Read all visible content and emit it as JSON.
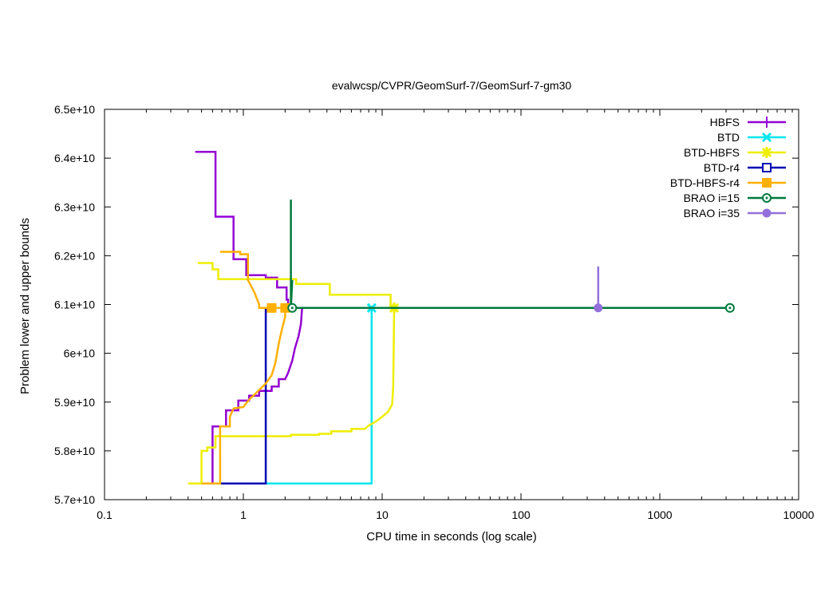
{
  "chart_data": {
    "type": "line",
    "title": "evalwcsp/CVPR/GeomSurf-7/GeomSurf-7-gm30",
    "xlabel": "CPU time in seconds (log scale)",
    "ylabel": "Problem lower and upper bounds",
    "x_scale": "log",
    "xlim": [
      0.1,
      10000
    ],
    "ylim": [
      57000000000,
      65000000000
    ],
    "x_ticks": [
      {
        "value": 0.1,
        "label": "0.1"
      },
      {
        "value": 1,
        "label": "1"
      },
      {
        "value": 10,
        "label": "10"
      },
      {
        "value": 100,
        "label": "100"
      },
      {
        "value": 1000,
        "label": "1000"
      },
      {
        "value": 10000,
        "label": "10000"
      }
    ],
    "y_ticks": [
      {
        "value": 57000000000,
        "label": "5.7e+10"
      },
      {
        "value": 58000000000,
        "label": "5.8e+10"
      },
      {
        "value": 59000000000,
        "label": "5.9e+10"
      },
      {
        "value": 60000000000,
        "label": "6e+10"
      },
      {
        "value": 61000000000,
        "label": "6.1e+10"
      },
      {
        "value": 62000000000,
        "label": "6.2e+10"
      },
      {
        "value": 63000000000,
        "label": "6.3e+10"
      },
      {
        "value": 64000000000,
        "label": "6.4e+10"
      },
      {
        "value": 65000000000,
        "label": "6.5e+10"
      }
    ],
    "grid": false,
    "legend_position": "top-right",
    "series": [
      {
        "name": "HBFS",
        "color": "#9400d3",
        "marker": "plus",
        "upper": [
          [
            0.45,
            64130000000
          ],
          [
            0.63,
            64130000000
          ],
          [
            0.63,
            62800000000
          ],
          [
            0.85,
            62800000000
          ],
          [
            0.85,
            61930000000
          ],
          [
            1.05,
            61930000000
          ],
          [
            1.05,
            61600000000
          ],
          [
            1.45,
            61600000000
          ],
          [
            1.45,
            61550000000
          ],
          [
            1.75,
            61550000000
          ],
          [
            1.75,
            61350000000
          ],
          [
            2.05,
            61350000000
          ],
          [
            2.05,
            61100000000
          ],
          [
            2.1,
            61100000000
          ],
          [
            2.1,
            60930000000
          ]
        ],
        "lower": [
          [
            0.6,
            57330000000
          ],
          [
            0.6,
            58500000000
          ],
          [
            0.75,
            58500000000
          ],
          [
            0.75,
            58830000000
          ],
          [
            0.92,
            58830000000
          ],
          [
            0.92,
            59030000000
          ],
          [
            1.1,
            59030000000
          ],
          [
            1.1,
            59130000000
          ],
          [
            1.3,
            59130000000
          ],
          [
            1.3,
            59230000000
          ],
          [
            1.6,
            59230000000
          ],
          [
            1.6,
            59320000000
          ],
          [
            1.8,
            59320000000
          ],
          [
            1.8,
            59470000000
          ],
          [
            2.0,
            59470000000
          ],
          [
            2.1,
            59600000000
          ],
          [
            2.25,
            59850000000
          ],
          [
            2.35,
            60100000000
          ],
          [
            2.5,
            60350000000
          ],
          [
            2.6,
            60600000000
          ],
          [
            2.65,
            60930000000
          ]
        ],
        "upper_marker_x": [],
        "lower_marker_x": []
      },
      {
        "name": "BTD",
        "color": "#00e5ee",
        "marker": "cross",
        "upper": [
          [
            8.4,
            60930000000
          ],
          [
            8.4,
            60930000000
          ]
        ],
        "lower": [
          [
            1.45,
            57330000000
          ],
          [
            8.4,
            57330000000
          ],
          [
            8.4,
            60930000000
          ]
        ],
        "upper_marker_x": [
          8.4
        ],
        "lower_marker_x": []
      },
      {
        "name": "BTD-HBFS",
        "color": "#eeee00",
        "marker": "star",
        "upper": [
          [
            0.47,
            61850000000
          ],
          [
            0.6,
            61850000000
          ],
          [
            0.6,
            61720000000
          ],
          [
            0.66,
            61720000000
          ],
          [
            0.66,
            61520000000
          ],
          [
            2.4,
            61520000000
          ],
          [
            2.4,
            61420000000
          ],
          [
            4.2,
            61420000000
          ],
          [
            4.2,
            61200000000
          ],
          [
            11.5,
            61200000000
          ],
          [
            11.5,
            60930000000
          ],
          [
            12.2,
            60930000000
          ]
        ],
        "lower": [
          [
            0.4,
            57330000000
          ],
          [
            0.5,
            57330000000
          ],
          [
            0.5,
            58000000000
          ],
          [
            0.55,
            58000000000
          ],
          [
            0.55,
            58070000000
          ],
          [
            0.63,
            58070000000
          ],
          [
            0.63,
            58300000000
          ],
          [
            2.2,
            58300000000
          ],
          [
            2.2,
            58330000000
          ],
          [
            3.5,
            58330000000
          ],
          [
            3.5,
            58350000000
          ],
          [
            4.3,
            58350000000
          ],
          [
            4.3,
            58400000000
          ],
          [
            6.0,
            58400000000
          ],
          [
            6.0,
            58450000000
          ],
          [
            7.5,
            58450000000
          ],
          [
            8.0,
            58520000000
          ],
          [
            9.0,
            58600000000
          ],
          [
            10.0,
            58700000000
          ],
          [
            11.0,
            58800000000
          ],
          [
            11.8,
            58950000000
          ],
          [
            12.0,
            59300000000
          ],
          [
            12.1,
            60000000000
          ],
          [
            12.2,
            60930000000
          ]
        ],
        "upper_marker_x": [
          12.2
        ],
        "lower_marker_x": []
      },
      {
        "name": "BTD-r4",
        "color": "#0000b4",
        "marker": "open-square",
        "upper": [
          [
            1.38,
            60930000000
          ],
          [
            1.45,
            60930000000
          ]
        ],
        "lower": [
          [
            0.6,
            57330000000
          ],
          [
            1.45,
            57330000000
          ],
          [
            1.45,
            60930000000
          ]
        ],
        "upper_marker_x": [],
        "lower_marker_x": []
      },
      {
        "name": "BTD-HBFS-r4",
        "color": "#ffb000",
        "marker": "filled-square",
        "upper": [
          [
            0.68,
            62080000000
          ],
          [
            0.95,
            62080000000
          ],
          [
            0.95,
            62030000000
          ],
          [
            1.08,
            62030000000
          ],
          [
            1.08,
            61500000000
          ],
          [
            1.2,
            61250000000
          ],
          [
            1.3,
            61000000000
          ],
          [
            1.3,
            60930000000
          ],
          [
            2.0,
            60930000000
          ]
        ],
        "lower": [
          [
            0.5,
            57330000000
          ],
          [
            0.68,
            57330000000
          ],
          [
            0.68,
            58500000000
          ],
          [
            0.8,
            58500000000
          ],
          [
            0.8,
            58700000000
          ],
          [
            0.85,
            58870000000
          ],
          [
            1.0,
            58900000000
          ],
          [
            1.1,
            59050000000
          ],
          [
            1.2,
            59150000000
          ],
          [
            1.3,
            59250000000
          ],
          [
            1.45,
            59380000000
          ],
          [
            1.6,
            59550000000
          ],
          [
            1.7,
            59800000000
          ],
          [
            1.8,
            60200000000
          ],
          [
            1.9,
            60500000000
          ],
          [
            2.0,
            60750000000
          ],
          [
            2.0,
            60930000000
          ]
        ],
        "upper_marker_x": [
          1.6,
          2.0
        ],
        "lower_marker_x": []
      },
      {
        "name": "BRAO i=15",
        "color": "#007a3d",
        "marker": "open-circle",
        "upper": [
          [
            2.2,
            63150000000
          ],
          [
            2.2,
            60930000000
          ],
          [
            3200,
            60930000000
          ]
        ],
        "lower": [
          [
            2.2,
            60930000000
          ],
          [
            2.25,
            61500000000
          ]
        ],
        "upper_marker_x": [
          2.25,
          3200
        ],
        "lower_marker_x": []
      },
      {
        "name": "BRAO i=35",
        "color": "#9370db",
        "marker": "filled-circle",
        "upper": [
          [
            360,
            61780000000
          ],
          [
            360,
            60930000000
          ]
        ],
        "lower": [],
        "upper_marker_x": [
          360
        ],
        "lower_marker_x": []
      }
    ]
  }
}
